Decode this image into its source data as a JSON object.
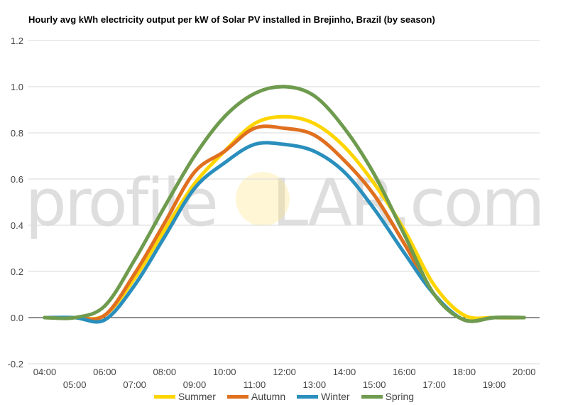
{
  "chart_data": {
    "type": "line",
    "title": "Hourly avg kWh electricity output per kW of Solar PV installed in Brejinho, Brazil (by season)",
    "x_ticks": [
      "04:00",
      "05:00",
      "06:00",
      "07:00",
      "08:00",
      "09:00",
      "10:00",
      "11:00",
      "12:00",
      "13:00",
      "14:00",
      "15:00",
      "16:00",
      "17:00",
      "18:00",
      "19:00",
      "20:00"
    ],
    "y_ticks": [
      "1.2",
      "1.0",
      "0.8",
      "0.6",
      "0.4",
      "0.2",
      "0.0",
      "-0.2"
    ],
    "ylim": [
      -0.2,
      1.2
    ],
    "grid": true,
    "legend_position": "bottom",
    "series": [
      {
        "name": "Summer",
        "color": "#ffd500",
        "values": [
          0,
          0,
          0.01,
          0.17,
          0.38,
          0.58,
          0.72,
          0.84,
          0.87,
          0.84,
          0.74,
          0.58,
          0.38,
          0.14,
          0.01,
          0,
          0
        ]
      },
      {
        "name": "Autumn",
        "color": "#e07020",
        "values": [
          0,
          0,
          0.01,
          0.19,
          0.41,
          0.63,
          0.72,
          0.82,
          0.82,
          0.79,
          0.68,
          0.53,
          0.32,
          0.1,
          -0.01,
          0,
          0
        ]
      },
      {
        "name": "Winter",
        "color": "#2a8fbd",
        "values": [
          0,
          0,
          -0.01,
          0.14,
          0.35,
          0.56,
          0.67,
          0.75,
          0.75,
          0.72,
          0.63,
          0.47,
          0.28,
          0.1,
          -0.01,
          0,
          0
        ]
      },
      {
        "name": "Spring",
        "color": "#6e9b4e",
        "values": [
          0,
          0,
          0.05,
          0.25,
          0.48,
          0.7,
          0.87,
          0.97,
          1.0,
          0.96,
          0.82,
          0.62,
          0.36,
          0.1,
          -0.01,
          0,
          0
        ]
      }
    ]
  },
  "watermark": {
    "text_left": "profile",
    "text_right": "LAR.com"
  }
}
